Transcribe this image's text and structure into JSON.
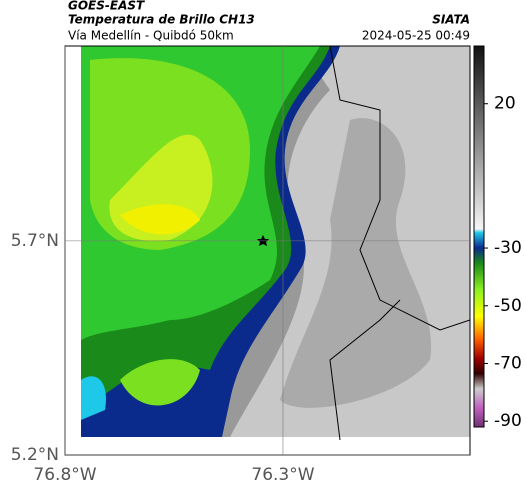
{
  "header": {
    "title": "GOES-EAST",
    "subtitle": "Temperatura de Brillo CH13",
    "route": "Vía Medellín - Quibdó 50km",
    "source": "SIATA",
    "timestamp": "2024-05-25 00:49"
  },
  "map": {
    "latlim": [
      5.2,
      6.155
    ],
    "lonlim": [
      -76.8,
      -75.871
    ],
    "lat_ticks": [
      {
        "value": 5.7,
        "label": "5.7°N"
      },
      {
        "value": 5.2,
        "label": "5.2°N"
      }
    ],
    "lon_ticks": [
      {
        "value": -76.8,
        "label": "76.8°W"
      },
      {
        "value": -76.3,
        "label": "76.3°W"
      }
    ]
  },
  "colorbar": {
    "lim": [
      -92,
      40
    ],
    "ticks": [
      20,
      -30,
      -50,
      -70,
      -90
    ]
  }
}
